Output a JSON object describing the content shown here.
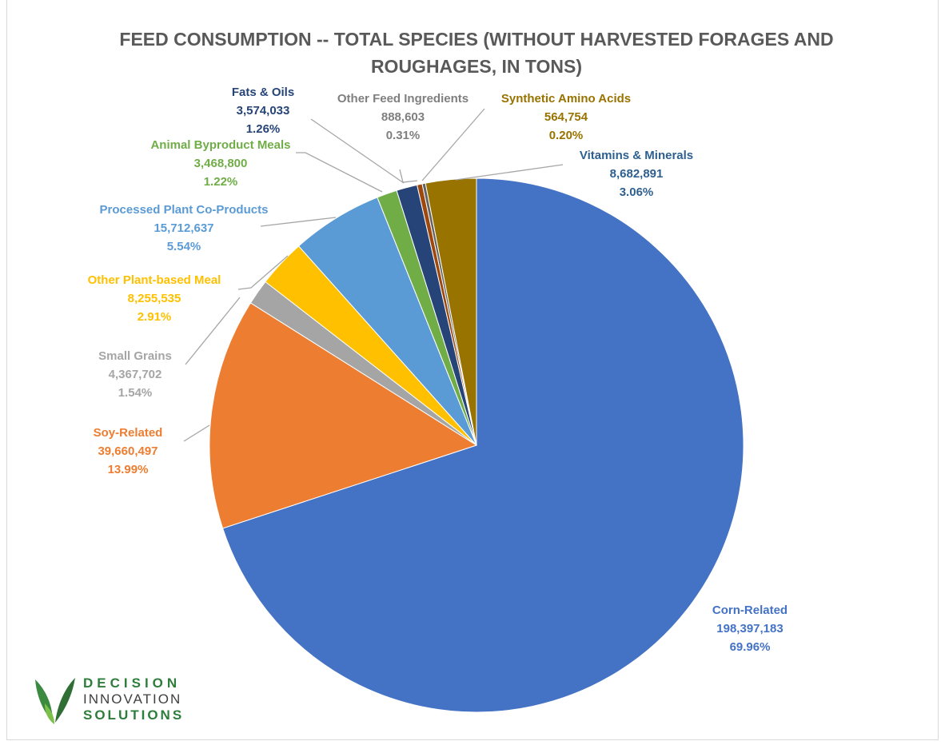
{
  "chart_data": {
    "type": "pie",
    "title": "FEED CONSUMPTION -- TOTAL SPECIES (WITHOUT HARVESTED FORAGES AND ROUGHAGES, IN TONS)",
    "start": "12 o'clock",
    "direction": "clockwise",
    "legend": "none (data labels with leader lines)",
    "slices": [
      {
        "name": "Corn-Related",
        "value_text": "198,397,183",
        "percent_text": "69.96%",
        "value": 198397183,
        "percent": 69.96,
        "color": "#4472C4"
      },
      {
        "name": "Soy-Related",
        "value_text": "39,660,497",
        "percent_text": "13.99%",
        "value": 39660497,
        "percent": 13.99,
        "color": "#ED7D31"
      },
      {
        "name": "Small Grains",
        "value_text": "4,367,702",
        "percent_text": "1.54%",
        "value": 4367702,
        "percent": 1.54,
        "color": "#A5A5A5"
      },
      {
        "name": "Other Plant-based Meal",
        "value_text": "8,255,535",
        "percent_text": "2.91%",
        "value": 8255535,
        "percent": 2.91,
        "color": "#FFC000"
      },
      {
        "name": "Processed Plant Co-Products",
        "value_text": "15,712,637",
        "percent_text": "5.54%",
        "value": 15712637,
        "percent": 5.54,
        "color": "#5B9BD5"
      },
      {
        "name": "Animal Byproduct Meals",
        "value_text": "3,468,800",
        "percent_text": "1.22%",
        "value": 3468800,
        "percent": 1.22,
        "color": "#70AD47"
      },
      {
        "name": "Fats & Oils",
        "value_text": "3,574,033",
        "percent_text": "1.26%",
        "value": 3574033,
        "percent": 1.26,
        "color": "#264478"
      },
      {
        "name": "Other Feed Ingredients",
        "value_text": "888,603",
        "percent_text": "0.31%",
        "value": 888603,
        "percent": 0.31,
        "color": "#9E480E"
      },
      {
        "name": "Synthetic Amino Acids",
        "value_text": "564,754",
        "percent_text": "0.20%",
        "value": 564754,
        "percent": 0.2,
        "color": "#636363"
      },
      {
        "name": "Vitamins & Minerals",
        "value_text": "8,682,891",
        "percent_text": "3.06%",
        "value": 8682891,
        "percent": 3.06,
        "color": "#997300"
      }
    ],
    "label_colors": {
      "Corn-Related": "#4472C4",
      "Soy-Related": "#ED7D31",
      "Small Grains": "#A5A5A5",
      "Other Plant-based Meal": "#FFC000",
      "Processed Plant Co-Products": "#5B9BD5",
      "Animal Byproduct Meals": "#70AD47",
      "Fats & Oils": "#264478",
      "Other Feed Ingredients": "#7F7F7F",
      "Synthetic Amino Acids": "#997300",
      "Vitamins & Minerals": "#2E5F8F"
    },
    "leader_line_color": "#A6A6A6",
    "title_color": "#595959"
  },
  "logo": {
    "line1": "DECISION",
    "line2": "INNOVATION",
    "line3": "SOLUTIONS",
    "icon": "green-leaves-icon"
  }
}
